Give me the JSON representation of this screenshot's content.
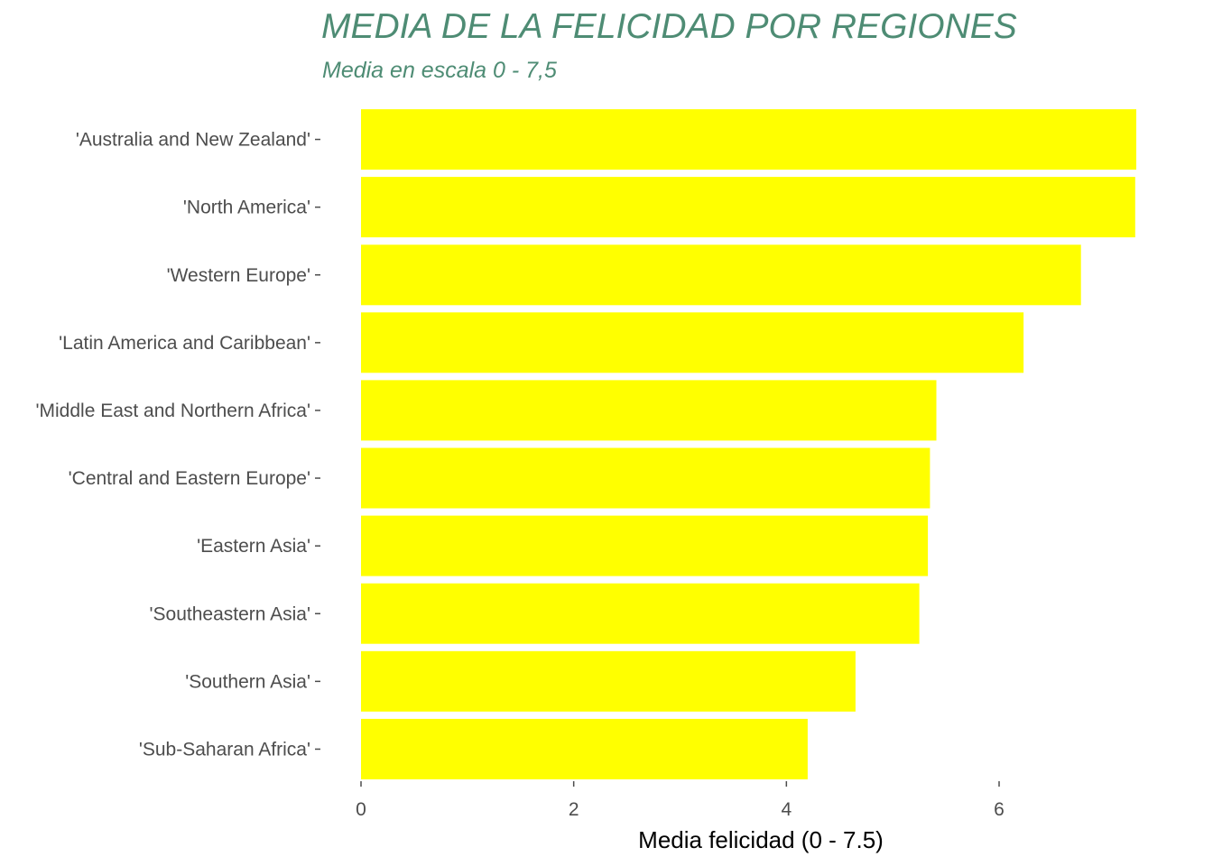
{
  "chart_data": {
    "type": "bar",
    "orientation": "horizontal",
    "title": "MEDIA DE LA FELICIDAD POR REGIONES",
    "subtitle": "Media en escala 0 - 7,5",
    "xlabel": "Media felicidad (0 - 7.5)",
    "ylabel": "",
    "categories": [
      "'Australia and New Zealand'",
      "'North America'",
      "'Western Europe'",
      "'Latin America and Caribbean'",
      "'Middle East and Northern Africa'",
      "'Central and Eastern Europe'",
      "'Eastern Asia'",
      "'Southeastern Asia'",
      "'Southern Asia'",
      "'Sub-Saharan Africa'"
    ],
    "values": [
      7.29,
      7.28,
      6.77,
      6.23,
      5.41,
      5.35,
      5.33,
      5.25,
      4.65,
      4.2
    ],
    "xlim": [
      0,
      7.5
    ],
    "xticks": [
      0,
      2,
      4,
      6
    ],
    "grid": false,
    "bar_color": "#ffff00",
    "title_color": "#4e8c74"
  }
}
